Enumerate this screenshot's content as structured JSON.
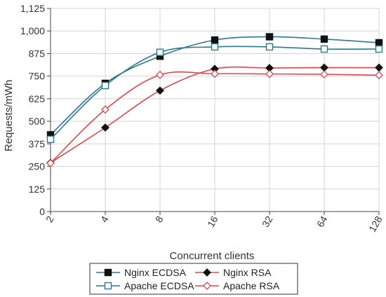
{
  "chart_data": {
    "type": "line",
    "xlabel": "Concurrent clients",
    "ylabel": "Requests/mWh",
    "x": [
      2,
      4,
      8,
      16,
      32,
      64,
      128
    ],
    "x_tick_labels": [
      "2",
      "4",
      "8",
      "16",
      "32",
      "64",
      "128"
    ],
    "x_scale": "log2",
    "y_tick_labels": [
      "0",
      "125",
      "250",
      "375",
      "500",
      "625",
      "750",
      "875",
      "1,000",
      "1,125"
    ],
    "ylim": [
      0,
      1125
    ],
    "grid": true,
    "legend_position": "bottom",
    "series": [
      {
        "name": "Nginx ECDSA",
        "values": [
          425,
          710,
          860,
          950,
          968,
          955,
          935
        ],
        "color": "#2a7a8c",
        "marker": "square-filled"
      },
      {
        "name": "Nginx RSA",
        "values": [
          270,
          465,
          670,
          790,
          795,
          797,
          797
        ],
        "color": "#e8434b",
        "marker": "diamond-filled"
      },
      {
        "name": "Apache ECDSA",
        "values": [
          400,
          698,
          882,
          912,
          912,
          900,
          900
        ],
        "color": "#2a7a8c",
        "marker": "square-open"
      },
      {
        "name": "Apache RSA",
        "values": [
          268,
          565,
          757,
          763,
          762,
          760,
          755
        ],
        "color": "#e8434b",
        "marker": "diamond-open"
      }
    ]
  }
}
